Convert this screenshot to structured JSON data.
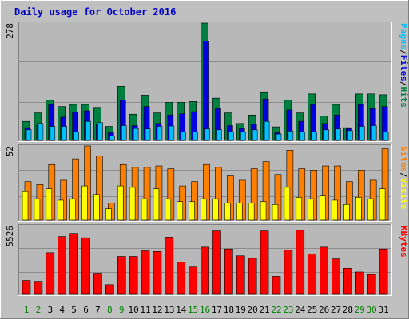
{
  "title": "Daily usage for October 2016",
  "colors": {
    "background": "#c0c0c0",
    "plot_bg": "#b8b8b8",
    "frame_dark": "#808080",
    "frame_light": "#ffffff",
    "grid": "#8c8c8c",
    "title": "#0000c0",
    "hits": "#008040",
    "files": "#0000e0",
    "pages": "#00c0ff",
    "visits": "#ff8000",
    "sites": "#ffff00",
    "kbytes": "#ff0000",
    "weekday": "#000000",
    "weekend": "#008000"
  },
  "chart_data": [
    {
      "type": "bar",
      "panel": "hits-files-pages",
      "ymax_label": "278",
      "ylim": [
        0,
        278
      ],
      "grid": true,
      "legend": [
        "Pages",
        "/",
        "Files",
        "/",
        "Hits"
      ],
      "categories": [
        "1",
        "2",
        "3",
        "4",
        "5",
        "6",
        "7",
        "8",
        "9",
        "10",
        "11",
        "12",
        "13",
        "14",
        "15",
        "16",
        "17",
        "18",
        "19",
        "20",
        "21",
        "22",
        "23",
        "24",
        "25",
        "26",
        "27",
        "28",
        "29",
        "30",
        "31"
      ],
      "weekend": [
        1,
        2,
        8,
        9,
        15,
        16,
        22,
        23,
        29,
        30
      ],
      "series": [
        {
          "name": "Hits",
          "values": [
            45,
            65,
            95,
            80,
            85,
            85,
            78,
            33,
            128,
            62,
            107,
            65,
            90,
            90,
            92,
            278,
            100,
            65,
            40,
            60,
            115,
            32,
            95,
            65,
            110,
            58,
            85,
            30,
            110,
            110,
            108
          ]
        },
        {
          "name": "Files",
          "values": [
            30,
            38,
            85,
            55,
            67,
            70,
            38,
            18,
            95,
            35,
            80,
            40,
            60,
            63,
            68,
            235,
            75,
            35,
            28,
            38,
            98,
            18,
            72,
            45,
            85,
            40,
            60,
            28,
            85,
            75,
            80
          ]
        },
        {
          "name": "Pages",
          "values": [
            25,
            40,
            33,
            33,
            20,
            45,
            42,
            10,
            35,
            28,
            27,
            33,
            34,
            20,
            20,
            27,
            25,
            20,
            20,
            25,
            45,
            15,
            22,
            20,
            20,
            25,
            27,
            23,
            33,
            35,
            20
          ]
        }
      ]
    },
    {
      "type": "bar",
      "panel": "visits-sites",
      "ymax_label": "52",
      "ylim": [
        0,
        52
      ],
      "grid": true,
      "legend": [
        "Sites",
        "/",
        "Visits"
      ],
      "categories": [
        "1",
        "2",
        "3",
        "4",
        "5",
        "6",
        "7",
        "8",
        "9",
        "10",
        "11",
        "12",
        "13",
        "14",
        "15",
        "16",
        "17",
        "18",
        "19",
        "20",
        "21",
        "22",
        "23",
        "24",
        "25",
        "26",
        "27",
        "28",
        "29",
        "30",
        "31"
      ],
      "series": [
        {
          "name": "Visits",
          "values": [
            27,
            25,
            39,
            28,
            43,
            52,
            45,
            12,
            39,
            37,
            37,
            38,
            36,
            24,
            27,
            39,
            37,
            31,
            28,
            36,
            41,
            32,
            49,
            36,
            35,
            38,
            38,
            27,
            35,
            28,
            50
          ]
        },
        {
          "name": "Sites",
          "values": [
            20,
            15,
            22,
            14,
            15,
            24,
            18,
            8,
            24,
            23,
            15,
            22,
            15,
            13,
            13,
            15,
            15,
            12,
            12,
            12,
            13,
            11,
            23,
            16,
            15,
            17,
            14,
            11,
            16,
            15,
            22
          ]
        }
      ]
    },
    {
      "type": "bar",
      "panel": "kbytes",
      "ymax_label": "5526",
      "ylim": [
        0,
        5526
      ],
      "grid": true,
      "legend": [
        "KBytes"
      ],
      "categories": [
        "1",
        "2",
        "3",
        "4",
        "5",
        "6",
        "7",
        "8",
        "9",
        "10",
        "11",
        "12",
        "13",
        "14",
        "15",
        "16",
        "17",
        "18",
        "19",
        "20",
        "21",
        "22",
        "23",
        "24",
        "25",
        "26",
        "27",
        "28",
        "29",
        "30",
        "31"
      ],
      "values": [
        1120,
        1050,
        3350,
        4650,
        4900,
        4550,
        1700,
        780,
        3050,
        3050,
        3500,
        3450,
        4600,
        2600,
        2200,
        3800,
        5100,
        3650,
        3100,
        2900,
        5100,
        1450,
        3550,
        5150,
        3250,
        3800,
        2850,
        2100,
        1800,
        1600,
        3650
      ]
    }
  ]
}
